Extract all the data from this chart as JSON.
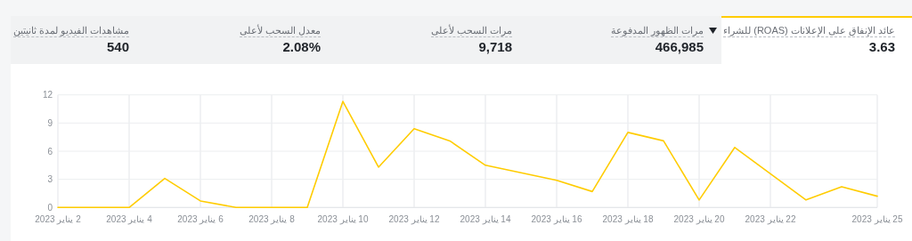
{
  "chart_data": [
    {
      "type": "other",
      "annotations": [
        "عائد الإنفاق على الإعلانات (ROAS) للشراء",
        "3.63",
        "مرات الظهور المدفوعة",
        "466,985",
        "مرات السحب لأعلى",
        "9,718",
        "معدل السحب لأعلى",
        "2.08%",
        "مشاهدات الفيديو لمدة ثانيتين",
        "540"
      ]
    },
    {
      "type": "line",
      "x": [
        "2023-01-02",
        "2023-01-03",
        "2023-01-04",
        "2023-01-05",
        "2023-01-06",
        "2023-01-07",
        "2023-01-08",
        "2023-01-09",
        "2023-01-10",
        "2023-01-11",
        "2023-01-12",
        "2023-01-13",
        "2023-01-14",
        "2023-01-15",
        "2023-01-16",
        "2023-01-17",
        "2023-01-18",
        "2023-01-19",
        "2023-01-20",
        "2023-01-21",
        "2023-01-22",
        "2023-01-23",
        "2023-01-24",
        "2023-01-25"
      ],
      "series": [
        {
          "color": "#ffcc00",
          "values": [
            0,
            0,
            0,
            3.1,
            0.7,
            0,
            0,
            0,
            11.3,
            4.3,
            8.4,
            7.1,
            4.5,
            3.7,
            2.9,
            1.7,
            8.0,
            7.1,
            0.8,
            6.4,
            3.6,
            0.8,
            2.2,
            1.2
          ]
        }
      ],
      "xlim": [
        "2023-01-02",
        "2023-01-25"
      ],
      "xticks": [
        {
          "value": "2023-01-02",
          "label": "2 يناير 2023"
        },
        {
          "value": "2023-01-04",
          "label": "4 يناير 2023"
        },
        {
          "value": "2023-01-06",
          "label": "6 يناير 2023"
        },
        {
          "value": "2023-01-08",
          "label": "8 يناير 2023"
        },
        {
          "value": "2023-01-10",
          "label": "10 يناير 2023"
        },
        {
          "value": "2023-01-12",
          "label": "12 يناير 2023"
        },
        {
          "value": "2023-01-14",
          "label": "14 يناير 2023"
        },
        {
          "value": "2023-01-16",
          "label": "16 يناير 2023"
        },
        {
          "value": "2023-01-18",
          "label": "18 يناير 2023"
        },
        {
          "value": "2023-01-20",
          "label": "20 يناير 2023"
        },
        {
          "value": "2023-01-22",
          "label": "22 يناير 2023"
        },
        {
          "value": "2023-01-25",
          "label": "25 يناير 2023"
        }
      ],
      "ylim": [
        0,
        12
      ],
      "yticks": [
        0,
        3,
        6,
        9,
        12
      ],
      "grid": true,
      "marker": "none",
      "line_style": "solid"
    }
  ]
}
